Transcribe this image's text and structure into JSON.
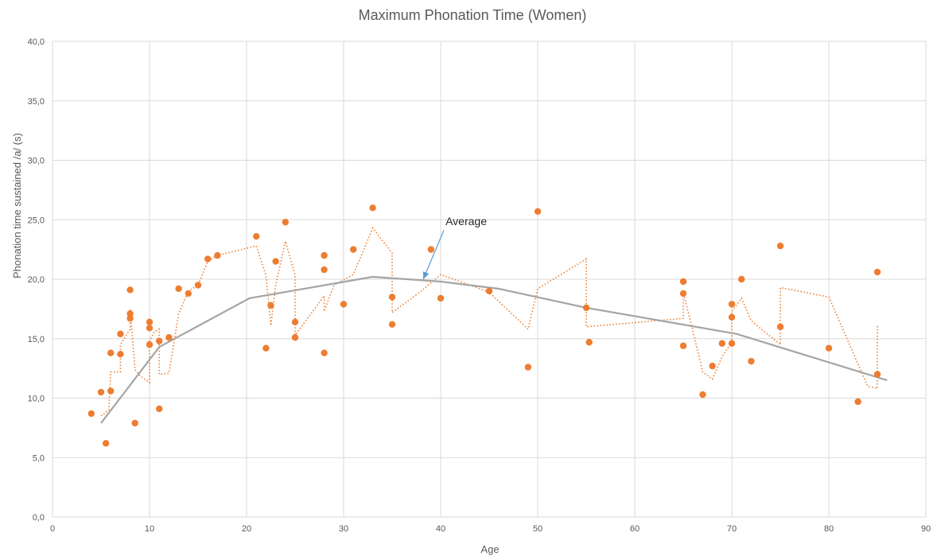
{
  "chart_data": {
    "type": "scatter",
    "title": "Maximum Phonation Time (Women)",
    "xlabel": "Age",
    "ylabel": "Phonation time sustained /a/ (s)",
    "xlim": [
      0,
      90
    ],
    "ylim": [
      0,
      40
    ],
    "x_ticks": [
      "0",
      "10",
      "20",
      "30",
      "40",
      "50",
      "60",
      "70",
      "80",
      "90"
    ],
    "y_ticks": [
      "0,0",
      "5,0",
      "10,0",
      "15,0",
      "20,0",
      "25,0",
      "30,0",
      "35,0",
      "40,0"
    ],
    "grid": true,
    "colors": {
      "points": "#ED7D31",
      "average": "#A5A5A5",
      "annotation_arrow": "#5B9BD5",
      "grid": "#D9D9D9",
      "text": "#595959"
    },
    "series": [
      {
        "style": "markers",
        "points": [
          [
            4,
            8.7
          ],
          [
            5,
            10.5
          ],
          [
            5.5,
            6.2
          ],
          [
            6,
            10.6
          ],
          [
            6,
            13.8
          ],
          [
            7,
            13.7
          ],
          [
            7,
            15.4
          ],
          [
            8,
            19.1
          ],
          [
            8,
            17.1
          ],
          [
            8,
            16.7
          ],
          [
            8.5,
            7.9
          ],
          [
            10,
            16.4
          ],
          [
            10,
            15.9
          ],
          [
            10,
            14.5
          ],
          [
            11,
            9.1
          ],
          [
            11,
            14.8
          ],
          [
            12,
            15.1
          ],
          [
            13,
            19.2
          ],
          [
            14,
            18.8
          ],
          [
            15,
            19.5
          ],
          [
            16,
            21.7
          ],
          [
            17,
            22.0
          ],
          [
            21,
            23.6
          ],
          [
            22,
            14.2
          ],
          [
            22.5,
            17.8
          ],
          [
            23,
            21.5
          ],
          [
            24,
            24.8
          ],
          [
            25,
            16.4
          ],
          [
            25,
            15.1
          ],
          [
            28,
            22.0
          ],
          [
            28,
            20.8
          ],
          [
            28,
            13.8
          ],
          [
            30,
            17.9
          ],
          [
            31,
            22.5
          ],
          [
            33,
            26.0
          ],
          [
            35,
            18.5
          ],
          [
            35,
            16.2
          ],
          [
            39,
            22.5
          ],
          [
            40,
            18.4
          ],
          [
            45,
            19.0
          ],
          [
            49,
            12.6
          ],
          [
            50,
            25.7
          ],
          [
            55,
            17.6
          ],
          [
            55.3,
            14.7
          ],
          [
            65,
            19.8
          ],
          [
            65,
            18.8
          ],
          [
            65,
            14.4
          ],
          [
            67,
            10.3
          ],
          [
            68,
            12.7
          ],
          [
            69,
            14.6
          ],
          [
            70,
            14.6
          ],
          [
            70,
            16.8
          ],
          [
            70,
            17.9
          ],
          [
            71,
            20.0
          ],
          [
            72,
            13.1
          ],
          [
            75,
            22.8
          ],
          [
            75,
            16.0
          ],
          [
            80,
            14.2
          ],
          [
            83,
            9.7
          ],
          [
            85,
            20.6
          ],
          [
            85,
            12.0
          ]
        ]
      },
      {
        "style": "dotted-trend",
        "points": [
          [
            5,
            8.5
          ],
          [
            5.8,
            9.0
          ],
          [
            6,
            12.2
          ],
          [
            7,
            12.2
          ],
          [
            7,
            14.5
          ],
          [
            8,
            15.8
          ],
          [
            8,
            17.5
          ],
          [
            8.5,
            12.4
          ],
          [
            9,
            11.9
          ],
          [
            10,
            11.3
          ],
          [
            10,
            14.8
          ],
          [
            10.5,
            15.6
          ],
          [
            11,
            15.8
          ],
          [
            11,
            12.0
          ],
          [
            12,
            12.1
          ],
          [
            13,
            17.1
          ],
          [
            14,
            19.0
          ],
          [
            15,
            19.5
          ],
          [
            16,
            21.5
          ],
          [
            17,
            22.0
          ],
          [
            21,
            22.8
          ],
          [
            22,
            20.3
          ],
          [
            22.5,
            16.1
          ],
          [
            23,
            19.5
          ],
          [
            24,
            23.2
          ],
          [
            25,
            20.3
          ],
          [
            25,
            15.3
          ],
          [
            28,
            18.6
          ],
          [
            28,
            17.3
          ],
          [
            29,
            19.5
          ],
          [
            31,
            20.4
          ],
          [
            33,
            24.3
          ],
          [
            35,
            22.2
          ],
          [
            35,
            17.2
          ],
          [
            38,
            19.0
          ],
          [
            40,
            20.4
          ],
          [
            45,
            18.9
          ],
          [
            49,
            15.8
          ],
          [
            50,
            19.2
          ],
          [
            55,
            21.7
          ],
          [
            55,
            16.0
          ],
          [
            65,
            16.7
          ],
          [
            65,
            18.9
          ],
          [
            66,
            15.6
          ],
          [
            67,
            12.2
          ],
          [
            68,
            11.6
          ],
          [
            69,
            13.5
          ],
          [
            70,
            14.7
          ],
          [
            70,
            17.3
          ],
          [
            71,
            18.4
          ],
          [
            72,
            16.5
          ],
          [
            75,
            14.5
          ],
          [
            75,
            19.3
          ],
          [
            80,
            18.5
          ],
          [
            84,
            11.0
          ],
          [
            85,
            10.8
          ],
          [
            85,
            16.2
          ]
        ]
      },
      {
        "style": "line",
        "points": [
          [
            5,
            7.9
          ],
          [
            11,
            14.3
          ],
          [
            20.3,
            18.4
          ],
          [
            33,
            20.2
          ],
          [
            40,
            19.8
          ],
          [
            46,
            19.2
          ],
          [
            55,
            17.6
          ],
          [
            70.5,
            15.4
          ],
          [
            86,
            11.5
          ]
        ]
      }
    ],
    "annotations": [
      {
        "text": "Average",
        "x": 40.5,
        "y": 24.8,
        "arrow_to": [
          38.2,
          20.0
        ]
      }
    ]
  }
}
